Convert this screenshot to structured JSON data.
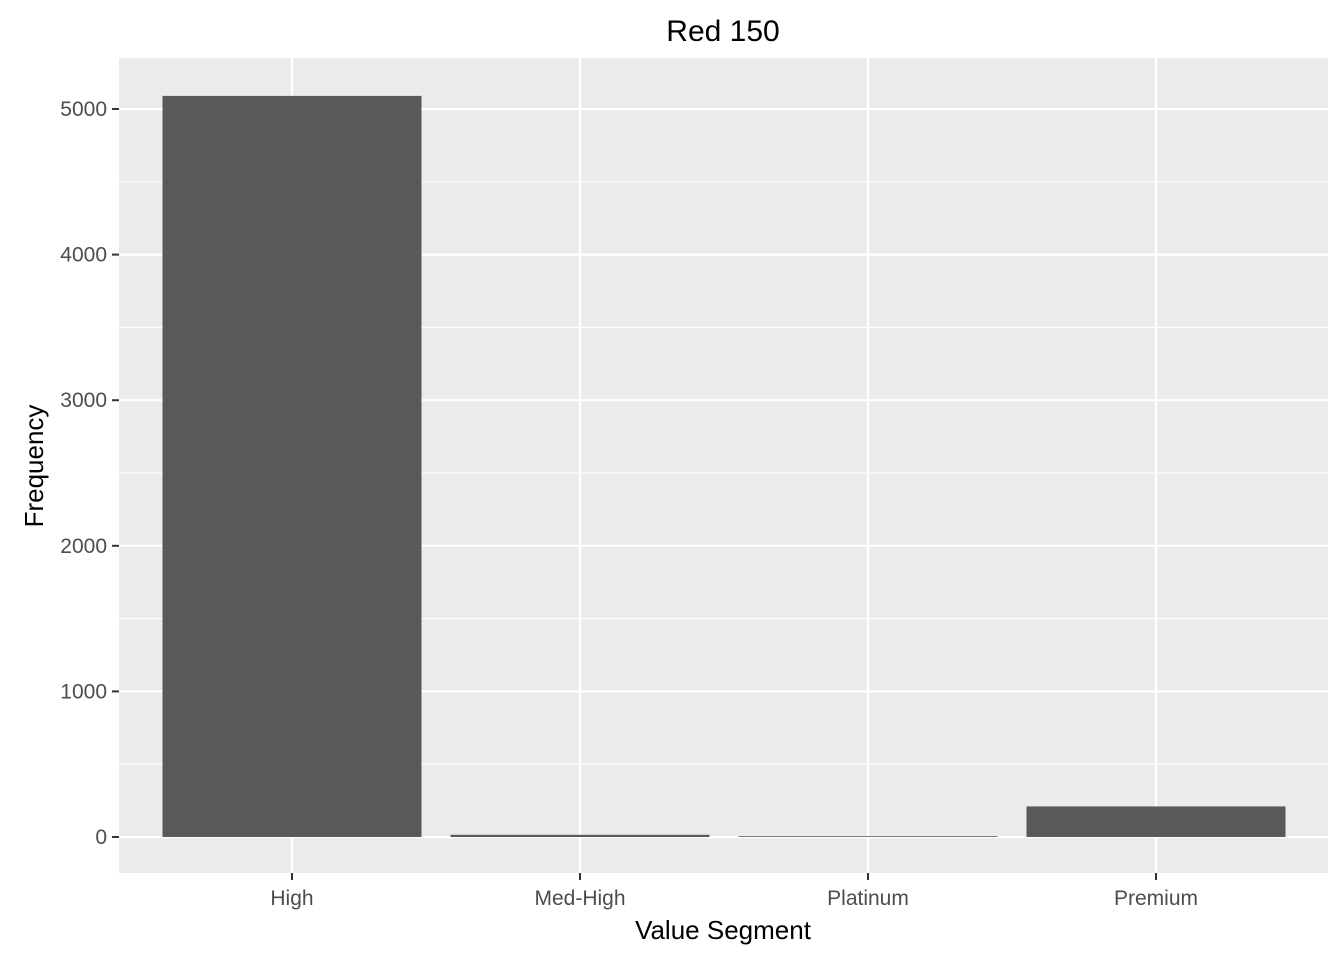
{
  "chart_data": {
    "type": "bar",
    "title": "Red 150",
    "xlabel": "Value Segment",
    "ylabel": "Frequency",
    "categories": [
      "High",
      "Med-High",
      "Platinum",
      "Premium"
    ],
    "values": [
      5090,
      15,
      5,
      210
    ],
    "ylim": [
      0,
      5350
    ],
    "yticks": [
      0,
      1000,
      2000,
      3000,
      4000,
      5000
    ],
    "yticks_labels": [
      "0",
      "1000",
      "2000",
      "3000",
      "4000",
      "5000"
    ],
    "grid": true,
    "colors": {
      "panel": "#EBEBEB",
      "grid": "#FFFFFF",
      "bar": "#595959",
      "tick_text": "#4D4D4D",
      "tick_mark": "#333333"
    }
  }
}
